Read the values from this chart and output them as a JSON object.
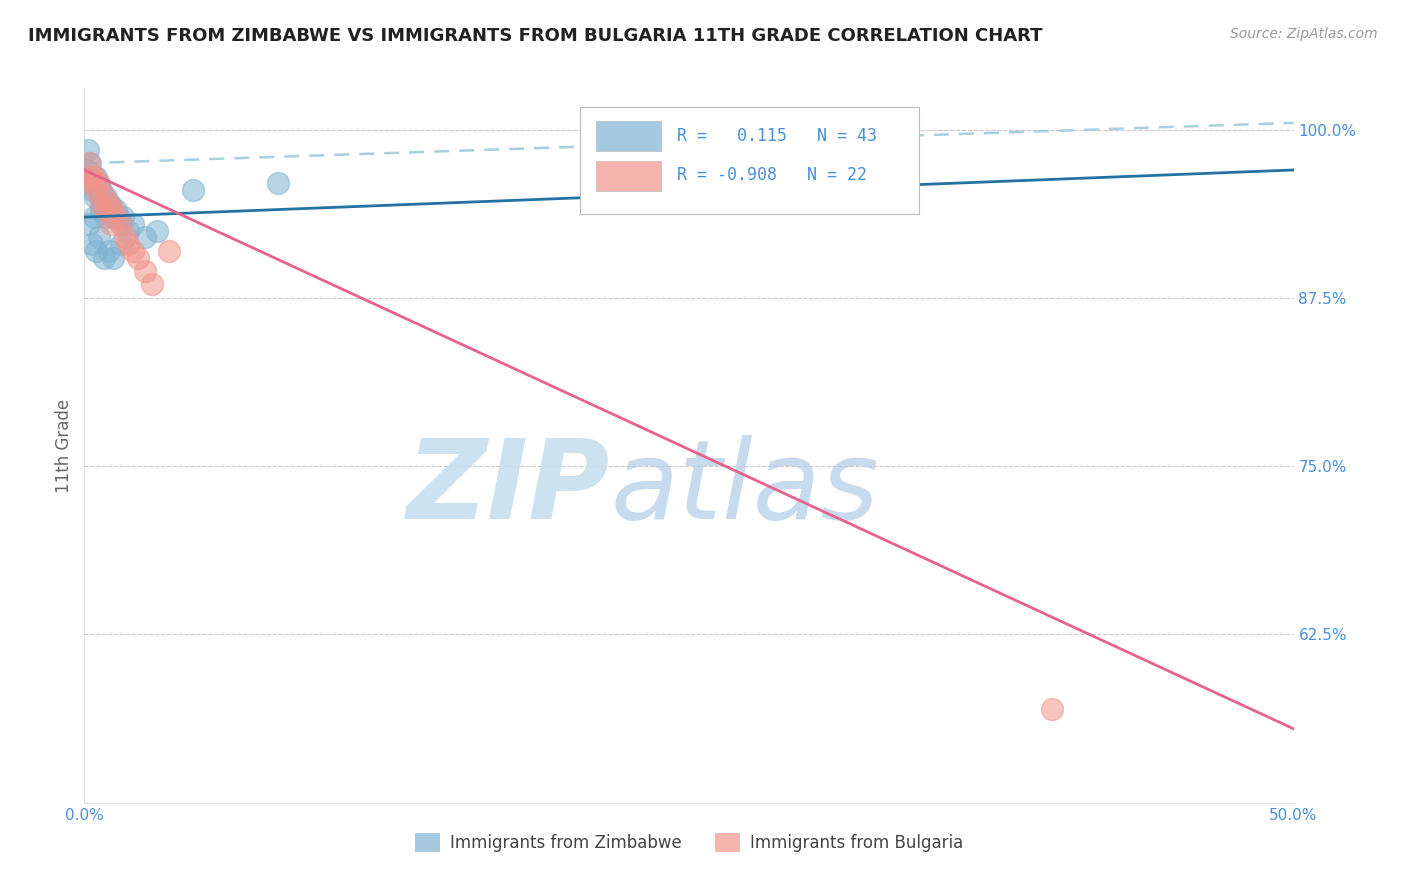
{
  "title": "IMMIGRANTS FROM ZIMBABWE VS IMMIGRANTS FROM BULGARIA 11TH GRADE CORRELATION CHART",
  "source_text": "Source: ZipAtlas.com",
  "ylabel": "11th Grade",
  "xlim": [
    0.0,
    50.0
  ],
  "ylim": [
    50.0,
    103.0
  ],
  "yticks": [
    62.5,
    75.0,
    87.5,
    100.0
  ],
  "ytick_labels": [
    "62.5%",
    "75.0%",
    "87.5%",
    "100.0%"
  ],
  "xticks": [
    0.0,
    10.0,
    20.0,
    30.0,
    40.0,
    50.0
  ],
  "xtick_labels": [
    "0.0%",
    "",
    "",
    "",
    "",
    "50.0%"
  ],
  "color_zim": "#7fb3d3",
  "color_bul": "#f1948a",
  "color_line_zim": "#2471a3",
  "color_line_bul": "#e8638c",
  "color_dashed": "#a8cfe0",
  "watermark_zip_color": "#c8dff0",
  "watermark_atlas_color": "#b0cce8",
  "title_color": "#222222",
  "axis_label_color": "#666666",
  "tick_label_color": "#4a90d9",
  "grid_color": "#cccccc",
  "legend_r1_val": "0.115",
  "legend_n1_val": "43",
  "legend_r2_val": "-0.908",
  "legend_n2_val": "22",
  "zimbabwe_x": [
    0.1,
    0.15,
    0.2,
    0.25,
    0.3,
    0.35,
    0.4,
    0.45,
    0.5,
    0.55,
    0.6,
    0.65,
    0.7,
    0.75,
    0.8,
    0.85,
    0.9,
    0.95,
    1.0,
    1.05,
    1.1,
    1.2,
    1.3,
    1.4,
    1.5,
    1.6,
    1.8,
    2.0,
    2.5,
    3.0,
    0.3,
    0.5,
    0.6,
    0.8,
    1.0,
    1.2,
    1.5,
    4.5,
    8.0,
    0.2,
    0.4,
    0.7,
    0.9
  ],
  "zimbabwe_y": [
    97.0,
    98.5,
    96.5,
    97.5,
    96.0,
    95.5,
    96.5,
    95.0,
    96.5,
    96.0,
    95.5,
    95.0,
    95.5,
    94.5,
    95.0,
    94.5,
    95.0,
    94.0,
    94.5,
    94.5,
    94.0,
    93.5,
    94.0,
    93.5,
    93.0,
    93.5,
    92.5,
    93.0,
    92.0,
    92.5,
    91.5,
    91.0,
    92.0,
    90.5,
    91.0,
    90.5,
    91.5,
    95.5,
    96.0,
    93.0,
    93.5,
    94.0,
    93.5
  ],
  "bulgaria_x": [
    0.2,
    0.4,
    0.6,
    0.8,
    1.0,
    1.2,
    1.5,
    1.8,
    2.2,
    2.5,
    0.3,
    0.5,
    0.9,
    1.3,
    1.7,
    2.0,
    2.8,
    0.35,
    0.7,
    1.1,
    40.0,
    3.5
  ],
  "bulgaria_y": [
    97.5,
    96.5,
    96.0,
    95.0,
    94.5,
    94.0,
    93.0,
    91.5,
    90.5,
    89.5,
    96.5,
    95.5,
    94.0,
    93.5,
    92.0,
    91.0,
    88.5,
    96.0,
    94.5,
    93.0,
    57.0,
    91.0
  ],
  "zim_line_x0": 0.0,
  "zim_line_y0": 93.5,
  "zim_line_x1": 50.0,
  "zim_line_y1": 97.0,
  "bul_line_x0": 0.0,
  "bul_line_y0": 97.0,
  "bul_line_x1": 50.0,
  "bul_line_y1": 55.5,
  "dash_line_x0": 0.0,
  "dash_line_y0": 97.5,
  "dash_line_x1": 50.0,
  "dash_line_y1": 100.5
}
